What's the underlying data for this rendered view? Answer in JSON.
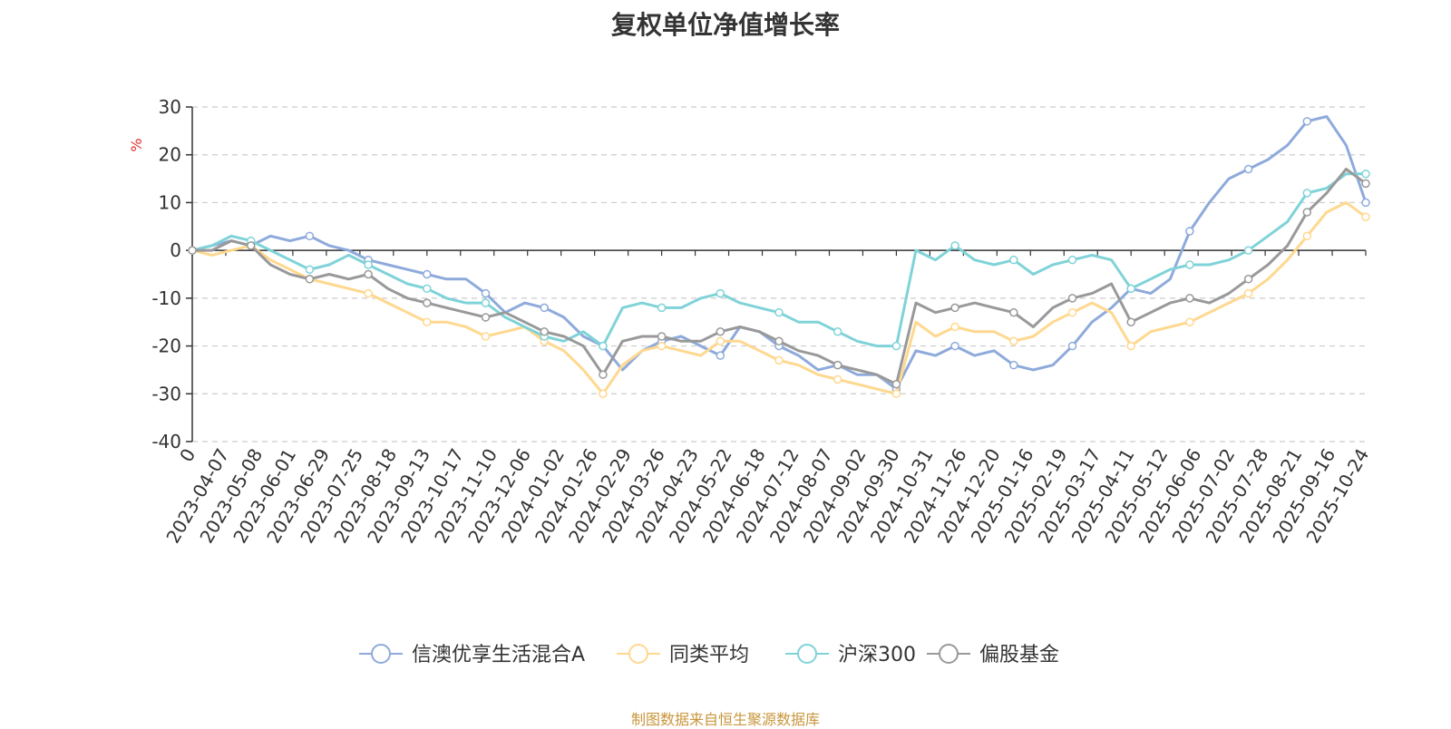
{
  "chart_data": {
    "type": "line",
    "title": "复权单位净值增长率",
    "ylabel": "%",
    "ylim": [
      -40,
      30
    ],
    "yticks": [
      -40,
      -30,
      -20,
      -10,
      0,
      10,
      20,
      30
    ],
    "x_start_label": "0",
    "x_tick_labels": [
      "2023-04-07",
      "2023-05-08",
      "2023-06-01",
      "2023-06-29",
      "2023-07-25",
      "2023-08-18",
      "2023-09-13",
      "2023-10-17",
      "2023-11-10",
      "2023-12-06",
      "2024-01-02",
      "2024-01-26",
      "2024-02-29",
      "2024-03-26",
      "2024-04-23",
      "2024-05-22",
      "2024-06-18",
      "2024-07-12",
      "2024-08-07",
      "2024-09-02",
      "2024-09-30",
      "2024-10-31",
      "2024-11-26",
      "2024-12-20",
      "2025-01-16",
      "2025-02-19",
      "2025-03-17",
      "2025-04-11",
      "2025-05-12",
      "2025-06-06",
      "2025-07-02",
      "2025-07-28",
      "2025-08-21",
      "2025-09-16",
      "2025-10-24"
    ],
    "grid": "dashed-horizontal",
    "legend_position": "bottom",
    "source": "制图数据来自恒生聚源数据库",
    "series": [
      {
        "name": "信澳优享生活混合A",
        "color": "#8eaadb",
        "values": [
          0,
          1,
          2,
          1,
          3,
          2,
          3,
          1,
          0,
          -2,
          -3,
          -4,
          -5,
          -6,
          -6,
          -9,
          -13,
          -11,
          -12,
          -14,
          -18,
          -20,
          -25,
          -21,
          -19,
          -18,
          -20,
          -22,
          -16,
          -17,
          -20,
          -22,
          -25,
          -24,
          -26,
          -26,
          -29,
          -21,
          -22,
          -20,
          -22,
          -21,
          -24,
          -25,
          -24,
          -20,
          -15,
          -12,
          -8,
          -9,
          -6,
          4,
          10,
          15,
          17,
          19,
          22,
          27,
          28,
          22,
          10
        ]
      },
      {
        "name": "同类平均",
        "color": "#ffd88f",
        "values": [
          0,
          -1,
          0,
          1,
          -2,
          -4,
          -6,
          -7,
          -8,
          -9,
          -11,
          -13,
          -15,
          -15,
          -16,
          -18,
          -17,
          -16,
          -19,
          -21,
          -25,
          -30,
          -24,
          -21,
          -20,
          -21,
          -22,
          -19,
          -19,
          -21,
          -23,
          -24,
          -26,
          -27,
          -28,
          -29,
          -30,
          -15,
          -18,
          -16,
          -17,
          -17,
          -19,
          -18,
          -15,
          -13,
          -11,
          -13,
          -20,
          -17,
          -16,
          -15,
          -13,
          -11,
          -9,
          -6,
          -2,
          3,
          8,
          10,
          7
        ]
      },
      {
        "name": "沪深300",
        "color": "#7fd3d8",
        "values": [
          0,
          1,
          3,
          2,
          0,
          -2,
          -4,
          -3,
          -1,
          -3,
          -5,
          -7,
          -8,
          -10,
          -11,
          -11,
          -14,
          -16,
          -18,
          -19,
          -17,
          -20,
          -12,
          -11,
          -12,
          -12,
          -10,
          -9,
          -11,
          -12,
          -13,
          -15,
          -15,
          -17,
          -19,
          -20,
          -20,
          0,
          -2,
          1,
          -2,
          -3,
          -2,
          -5,
          -3,
          -2,
          -1,
          -2,
          -8,
          -6,
          -4,
          -3,
          -3,
          -2,
          0,
          3,
          6,
          12,
          13,
          16,
          16
        ]
      },
      {
        "name": "偏股基金",
        "color": "#999999",
        "values": [
          0,
          0,
          2,
          1,
          -3,
          -5,
          -6,
          -5,
          -6,
          -5,
          -8,
          -10,
          -11,
          -12,
          -13,
          -14,
          -13,
          -15,
          -17,
          -18,
          -20,
          -26,
          -19,
          -18,
          -18,
          -19,
          -19,
          -17,
          -16,
          -17,
          -19,
          -21,
          -22,
          -24,
          -25,
          -26,
          -28,
          -11,
          -13,
          -12,
          -11,
          -12,
          -13,
          -16,
          -12,
          -10,
          -9,
          -7,
          -15,
          -13,
          -11,
          -10,
          -11,
          -9,
          -6,
          -3,
          1,
          8,
          12,
          17,
          14
        ]
      }
    ]
  }
}
